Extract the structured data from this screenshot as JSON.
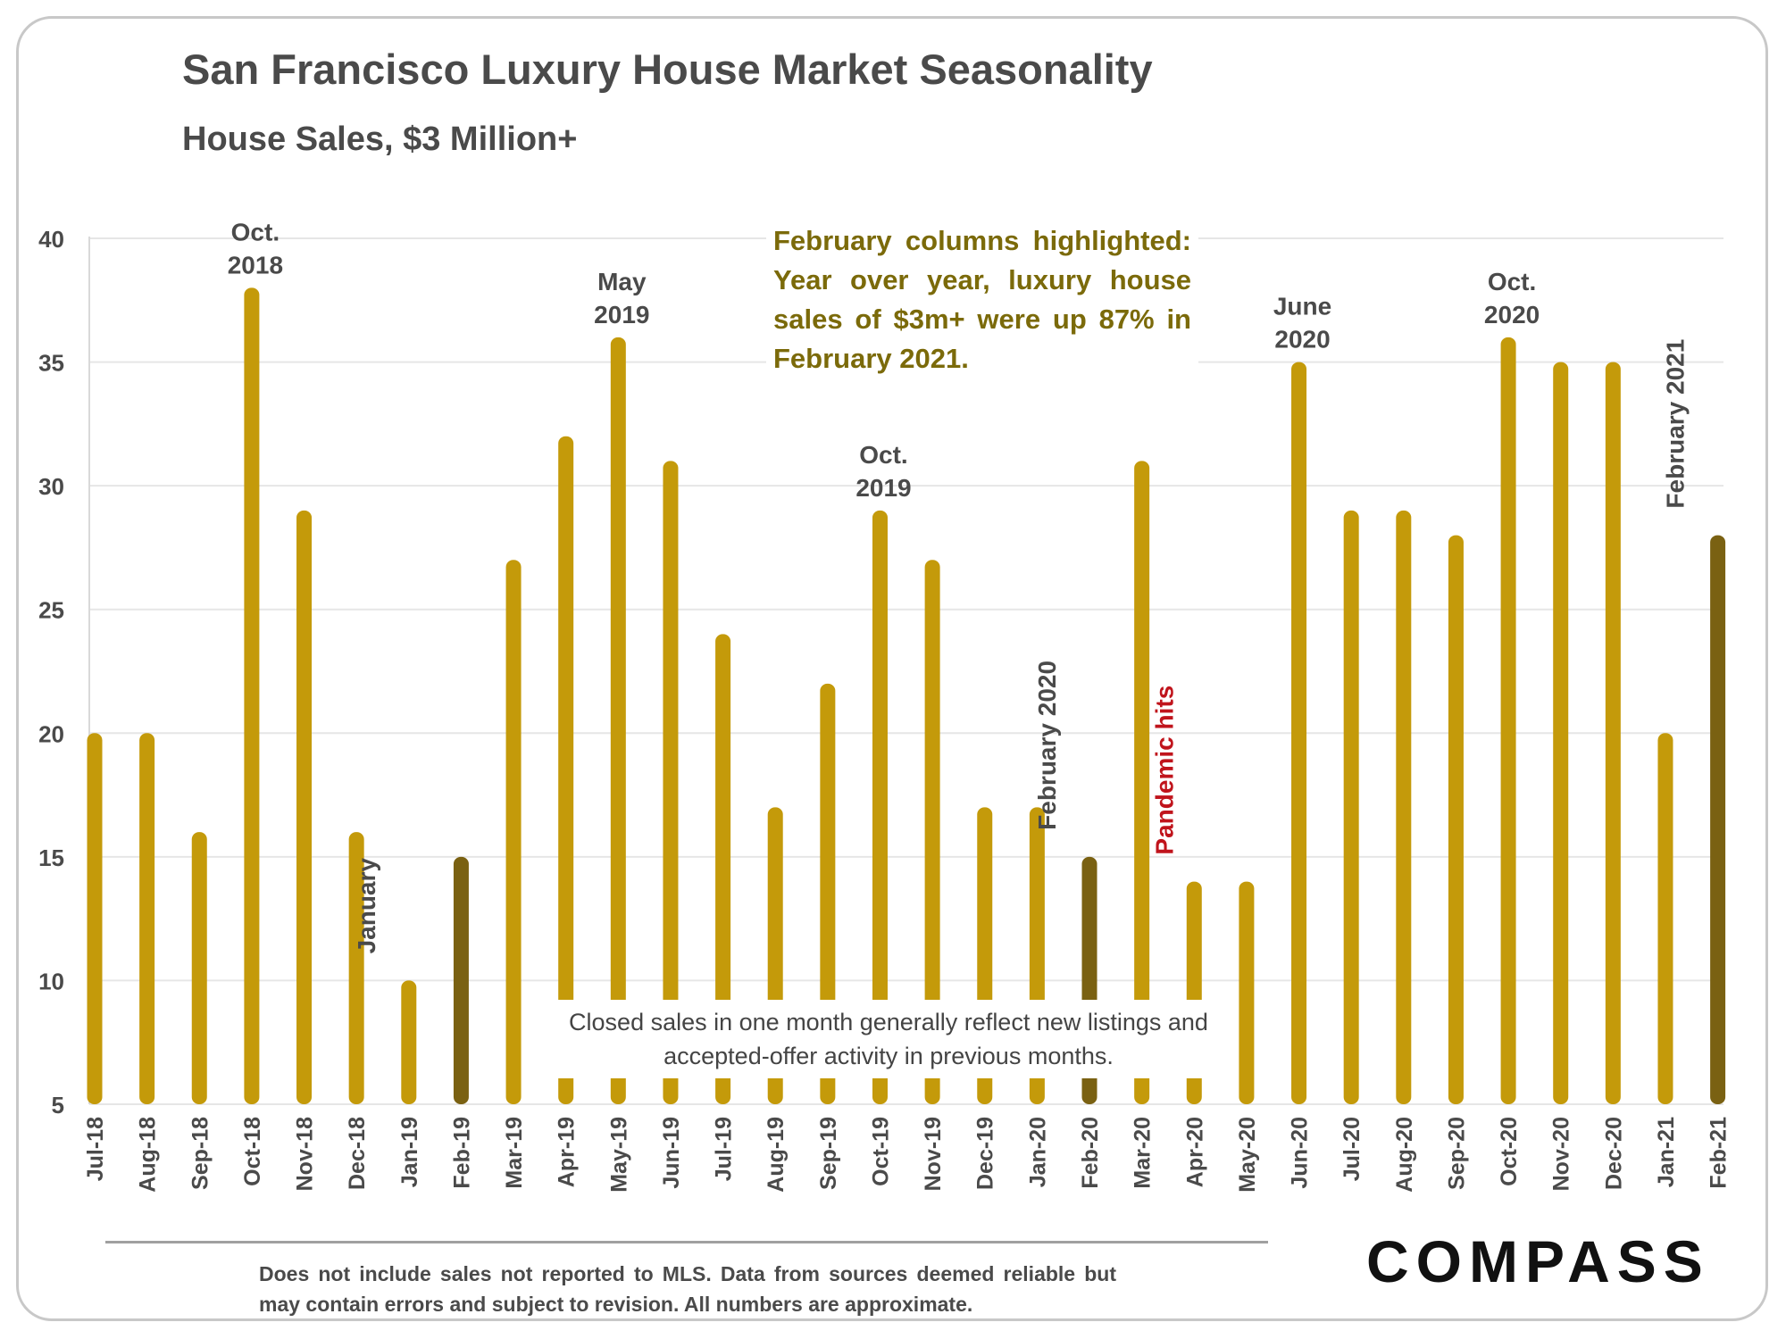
{
  "title": "San Francisco Luxury House Market Seasonality",
  "subtitle": "House Sales, $3 Million+",
  "callout": "February columns highlighted: Year over year, luxury house sales of $3m+ were up 87% in February 2021.",
  "note": "Closed sales in one month generally reflect new listings and accepted-offer activity in previous months.",
  "footnote": "Does not include sales not reported to MLS. Data from sources deemed reliable but may contain errors and subject to revision.  All numbers are approximate.",
  "logo": "COMPASS",
  "colors": {
    "bar": "#c49a0a",
    "highlight": "#7a6112",
    "label": "#4a4a4a",
    "pandemic": "#c0141c",
    "callout": "#7b6a0a"
  },
  "chart_data": {
    "type": "bar",
    "title": "San Francisco Luxury House Market Seasonality",
    "subtitle": "House Sales, $3 Million+",
    "xlabel": "",
    "ylabel": "",
    "ylim": [
      5,
      40
    ],
    "yticks": [
      5,
      10,
      15,
      20,
      25,
      30,
      35,
      40
    ],
    "grid": true,
    "categories": [
      "Jul-18",
      "Aug-18",
      "Sep-18",
      "Oct-18",
      "Nov-18",
      "Dec-18",
      "Jan-19",
      "Feb-19",
      "Mar-19",
      "Apr-19",
      "May-19",
      "Jun-19",
      "Jul-19",
      "Aug-19",
      "Sep-19",
      "Oct-19",
      "Nov-19",
      "Dec-19",
      "Jan-20",
      "Feb-20",
      "Mar-20",
      "Apr-20",
      "May-20",
      "Jun-20",
      "Jul-20",
      "Aug-20",
      "Sep-20",
      "Oct-20",
      "Nov-20",
      "Dec-20",
      "Jan-21",
      "Feb-21"
    ],
    "values": [
      20,
      20,
      16,
      38,
      29,
      16,
      10,
      15,
      27,
      32,
      36,
      31,
      24,
      17,
      22,
      29,
      27,
      17,
      17,
      15,
      31,
      14,
      14,
      35,
      29,
      29,
      28,
      36,
      35,
      35,
      20,
      28
    ],
    "highlighted": [
      "Feb-19",
      "Feb-20",
      "Feb-21"
    ],
    "annotations": [
      {
        "category": "Oct-18",
        "text": [
          "Oct.",
          "2018"
        ],
        "orientation": "horizontal"
      },
      {
        "category": "May-19",
        "text": [
          "May",
          "2019"
        ],
        "orientation": "horizontal"
      },
      {
        "category": "Oct-19",
        "text": [
          "Oct.",
          "2019"
        ],
        "orientation": "horizontal"
      },
      {
        "category": "Jun-20",
        "text": [
          "June",
          "2020"
        ],
        "orientation": "horizontal"
      },
      {
        "category": "Oct-20",
        "text": [
          "Oct.",
          "2020"
        ],
        "orientation": "horizontal"
      },
      {
        "category": "Jan-19",
        "text": [
          "January"
        ],
        "orientation": "vertical"
      },
      {
        "category": "Feb-20",
        "text": [
          "February 2020"
        ],
        "orientation": "vertical"
      },
      {
        "category": "Apr-20",
        "text": [
          "Pandemic hits"
        ],
        "orientation": "vertical",
        "color": "#c0141c"
      },
      {
        "category": "Feb-21",
        "text": [
          "February 2021"
        ],
        "orientation": "vertical"
      }
    ]
  }
}
